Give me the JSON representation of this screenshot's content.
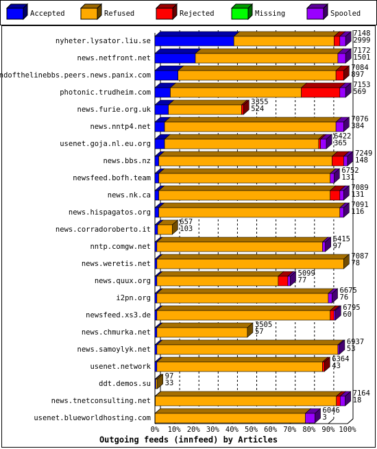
{
  "chart_data": {
    "type": "bar3d-stacked-horizontal",
    "title": "Outgoing feeds (innfeed) by Articles",
    "categories": [
      "nyheter.lysator.liu.se",
      "news.netfront.net",
      "endofthelinebbs.peers.news.panix.com",
      "photonic.trudheim.com",
      "news.furie.org.uk",
      "news.nntp4.net",
      "usenet.goja.nl.eu.org",
      "news.bbs.nz",
      "newsfeed.bofh.team",
      "news.nk.ca",
      "news.hispagatos.org",
      "news.corradoroberto.it",
      "nntp.comgw.net",
      "news.weretis.net",
      "news.quux.org",
      "i2pn.org",
      "newsfeed.xs3.de",
      "news.chmurka.net",
      "news.samoylyk.net",
      "usenet.network",
      "ddt.demos.su",
      "news.tnetconsulting.net",
      "usenet.blueworldhosting.com"
    ],
    "offered": [
      7148,
      7172,
      7084,
      7153,
      3355,
      7076,
      6422,
      7249,
      6752,
      7089,
      7091,
      657,
      6415,
      7087,
      5099,
      6675,
      6795,
      3505,
      6937,
      6364,
      97,
      7164,
      6046
    ],
    "accepted": [
      2999,
      1501,
      897,
      569,
      524,
      384,
      365,
      148,
      131,
      131,
      116,
      103,
      97,
      78,
      77,
      76,
      60,
      57,
      53,
      43,
      33,
      18,
      3
    ],
    "series": [
      {
        "name": "Accepted",
        "color": "#0000ff",
        "values": [
          41,
          21,
          12,
          8,
          7,
          5,
          5,
          2,
          2,
          2,
          2,
          1.4,
          1,
          1,
          1,
          1,
          1,
          1,
          1,
          1,
          0.5,
          0.2,
          0.1
        ]
      },
      {
        "name": "Refused",
        "color": "#ffaa00",
        "values": [
          52,
          74,
          82,
          68,
          38,
          89,
          80,
          90,
          89,
          89,
          94,
          7.6,
          86,
          97,
          63,
          89,
          90,
          47,
          94,
          86,
          0.8,
          94,
          78
        ]
      },
      {
        "name": "Rejected",
        "color": "#ff0000",
        "values": [
          3,
          0,
          4,
          20,
          1,
          0,
          1,
          6,
          0,
          5,
          0,
          0,
          0,
          0,
          5,
          0,
          2,
          0,
          0,
          1,
          0,
          2,
          0
        ]
      },
      {
        "name": "Missing",
        "color": "#00ff00",
        "values": [
          0,
          0,
          0,
          0,
          0,
          0,
          0,
          0,
          0,
          0,
          0,
          0,
          0,
          0,
          0,
          0,
          0,
          0,
          0,
          0,
          0,
          0,
          0
        ]
      },
      {
        "name": "Spooled",
        "color": "#9900ff",
        "values": [
          3,
          4,
          0,
          3,
          0,
          4,
          3,
          2,
          2,
          2,
          2,
          0,
          1.5,
          0,
          1.3,
          2,
          0.7,
          0,
          0.7,
          0,
          0,
          2.6,
          5
        ]
      }
    ],
    "xlim": [
      0,
      100
    ],
    "xticks": [
      {
        "value": 0,
        "label": "0%"
      },
      {
        "value": 10,
        "label": "10%"
      },
      {
        "value": 20,
        "label": "20%"
      },
      {
        "value": 30,
        "label": "30%"
      },
      {
        "value": 40,
        "label": "40%"
      },
      {
        "value": 50,
        "label": "50%"
      },
      {
        "value": 60,
        "label": "60%"
      },
      {
        "value": 70,
        "label": "70%"
      },
      {
        "value": 80,
        "label": "80%"
      },
      {
        "value": 90,
        "label": "90%"
      },
      {
        "value": 100,
        "label": "100%"
      }
    ],
    "grid": true
  }
}
